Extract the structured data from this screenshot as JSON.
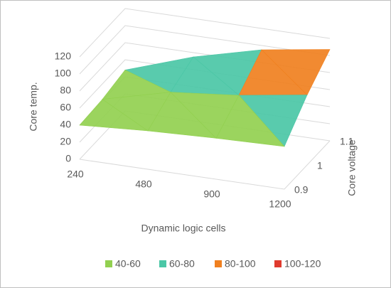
{
  "chart_data": {
    "type": "surface3d",
    "x_label": "Dynamic logic cells",
    "z_label": "Core temp.",
    "depth_label": "Core voltage",
    "categories": [
      "240",
      "480",
      "900",
      "1200"
    ],
    "depth_categories": [
      "0.9",
      "1",
      "1.1"
    ],
    "series": [
      {
        "name": "0.9",
        "values": [
          40,
          45,
          48,
          50
        ]
      },
      {
        "name": "1",
        "values": [
          42,
          62,
          70,
          82
        ]
      },
      {
        "name": "1.1",
        "values": [
          48,
          75,
          95,
          107
        ]
      }
    ],
    "zlim": [
      0,
      120
    ],
    "zticks": [
      0,
      20,
      40,
      60,
      80,
      100,
      120
    ],
    "bands": [
      {
        "name": "40-60",
        "range": [
          40,
          60
        ],
        "color": "#92d050"
      },
      {
        "name": "60-80",
        "range": [
          60,
          80
        ],
        "color": "#4bc7a6"
      },
      {
        "name": "80-100",
        "range": [
          80,
          100
        ],
        "color": "#f0801f"
      },
      {
        "name": "100-120",
        "range": [
          100,
          120
        ],
        "color": "#e03b2e"
      }
    ],
    "grid": true
  }
}
